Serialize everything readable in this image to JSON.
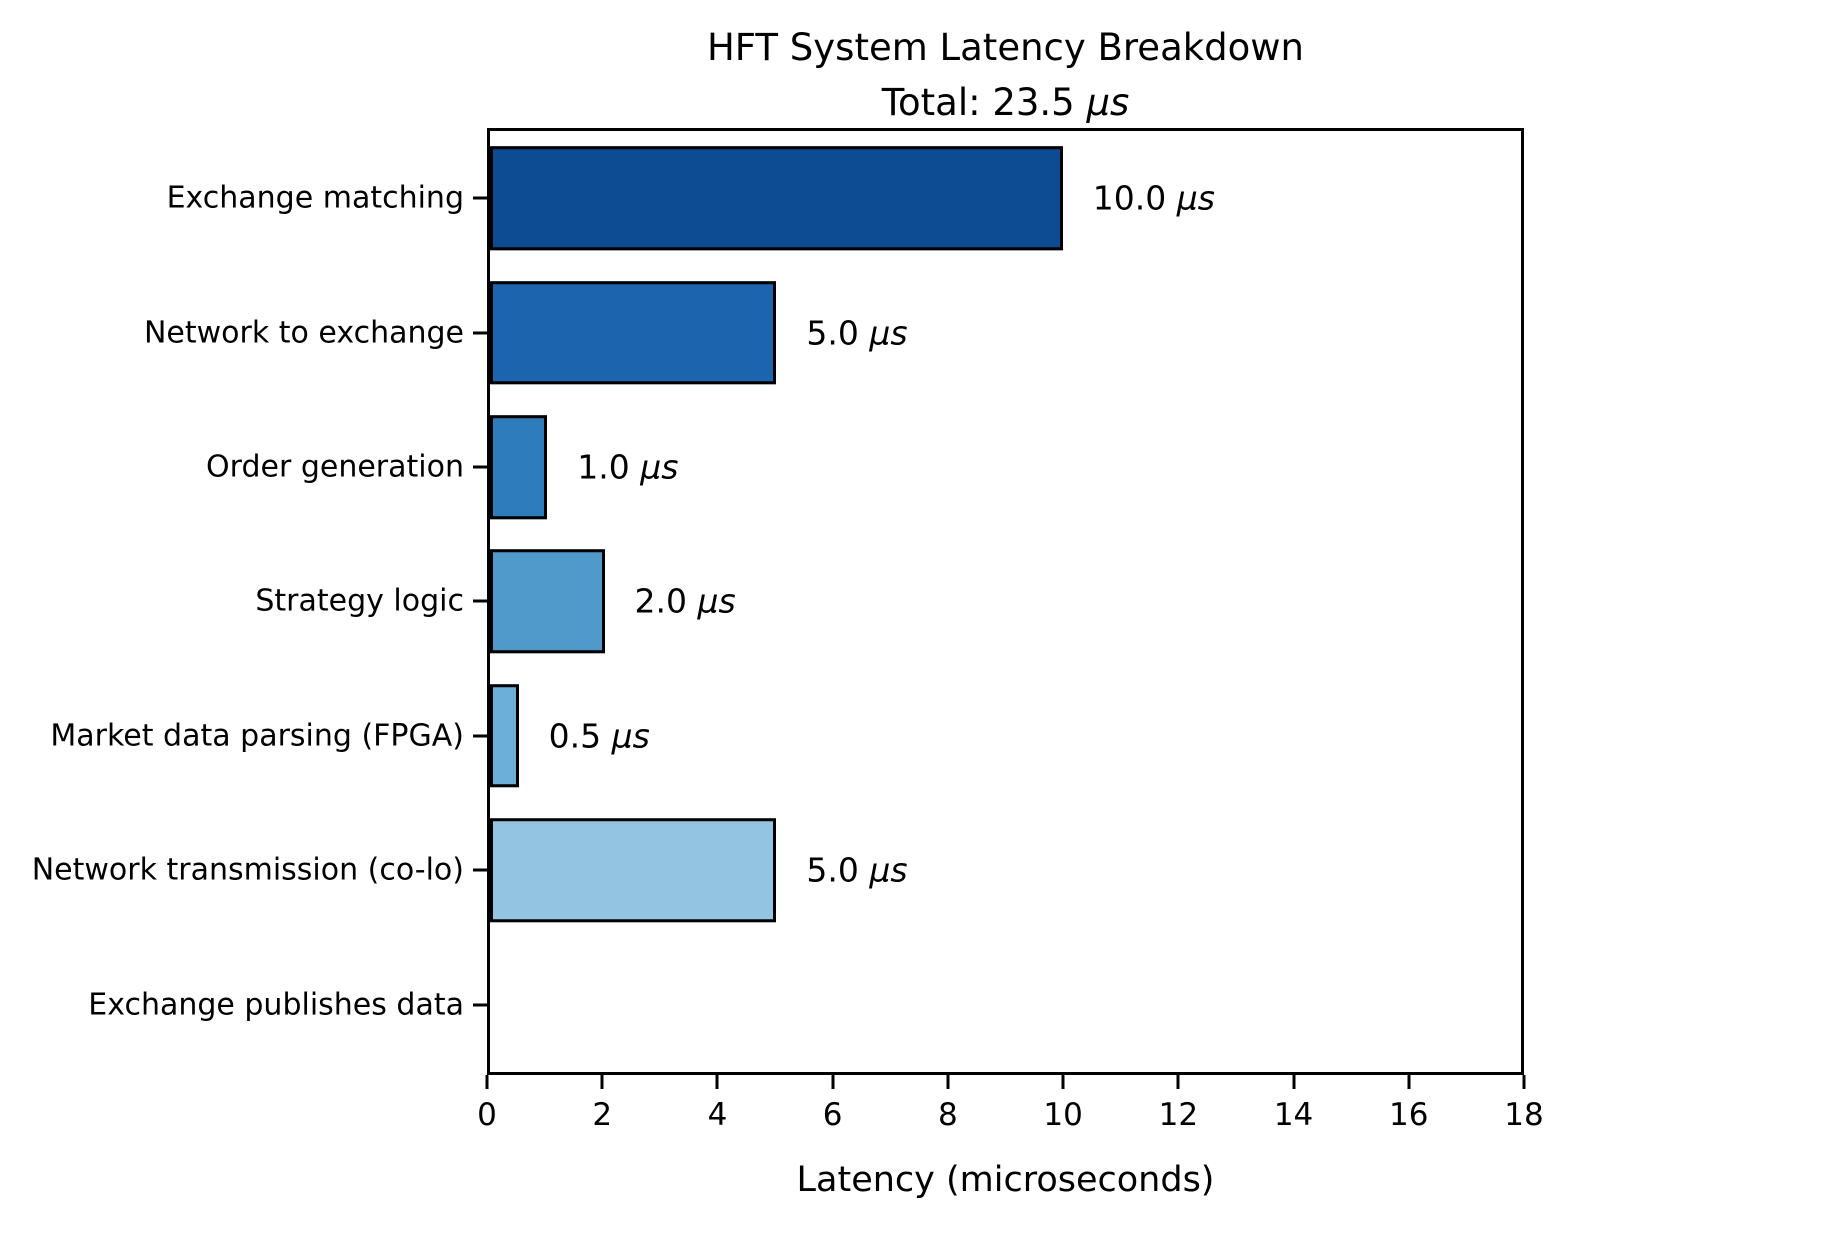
{
  "title": {
    "line1": "HFT System Latency Breakdown",
    "line2_prefix": "Total: 23.5 ",
    "line2_unit": "μs"
  },
  "chart_data": {
    "type": "bar",
    "orientation": "horizontal",
    "title": "HFT System Latency Breakdown",
    "subtitle": "Total: 23.5 μs",
    "xlabel": "Latency (microseconds)",
    "xlim": [
      0,
      18
    ],
    "xticks": [
      0,
      2,
      4,
      6,
      8,
      10,
      12,
      14,
      16,
      18
    ],
    "grid": false,
    "legend": false,
    "categories": [
      "Exchange matching",
      "Network to exchange",
      "Order generation",
      "Strategy logic",
      "Market data parsing (FPGA)",
      "Network transmission (co-lo)",
      "Exchange publishes data"
    ],
    "values": [
      10.0,
      5.0,
      1.0,
      2.0,
      0.5,
      5.0,
      0.0
    ],
    "value_labels": [
      "10.0 μs",
      "5.0 μs",
      "1.0 μs",
      "2.0 μs",
      "0.5 μs",
      "5.0 μs",
      ""
    ],
    "bar_colors": [
      "#0d4c93",
      "#1c64ad",
      "#2e7cbc",
      "#4f9aca",
      "#6cb0d8",
      "#93c4e2",
      null
    ],
    "bar_edge_color": "#000000",
    "background": "#ffffff",
    "total_label": "Total: 23.5 μs"
  }
}
